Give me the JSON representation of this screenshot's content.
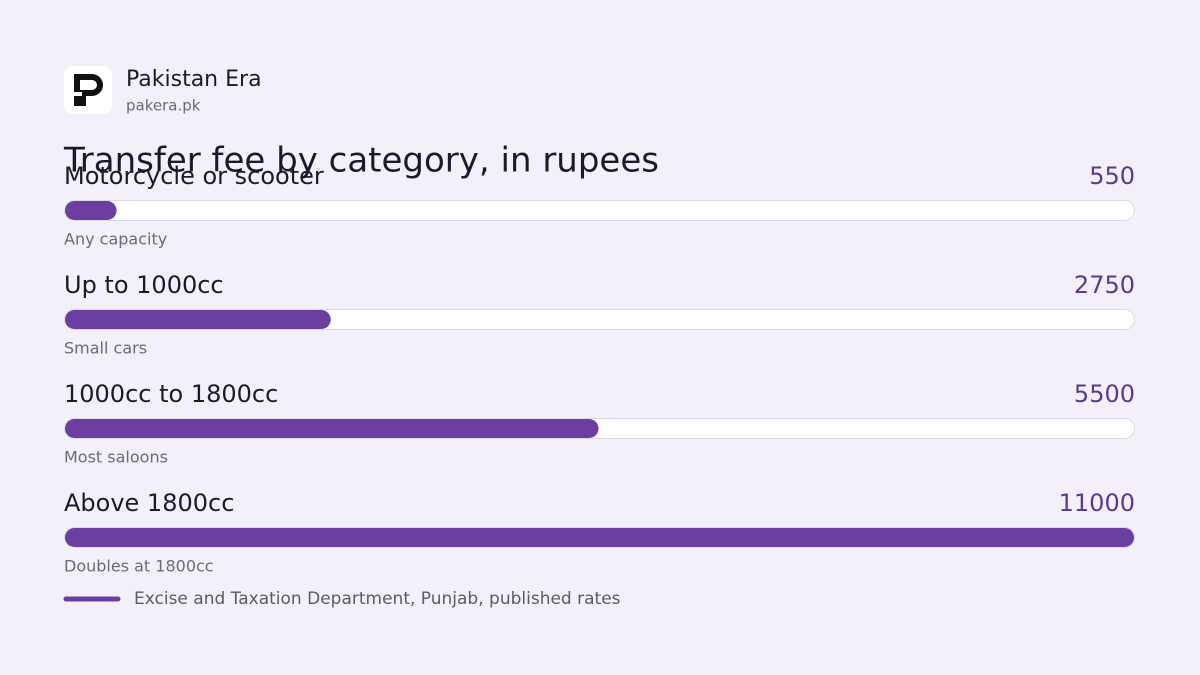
{
  "brand": {
    "name": "Pakistan Era",
    "site": "pakera.pk"
  },
  "chart_data": {
    "type": "bar",
    "orientation": "horizontal",
    "title": "Transfer fee by category, in rupees",
    "categories": [
      "Motorcycle or scooter",
      "Up to 1000cc",
      "1000cc to 1800cc",
      "Above 1800cc"
    ],
    "notes": [
      "Any capacity",
      "Small cars",
      "Most saloons",
      "Doubles at 1800cc"
    ],
    "series": [
      {
        "name": "Excise and Taxation Department, Punjab, published rates",
        "color": "#6b3fa0",
        "values": [
          550,
          2750,
          5500,
          11000
        ]
      }
    ],
    "xlim": [
      0,
      11000
    ]
  }
}
